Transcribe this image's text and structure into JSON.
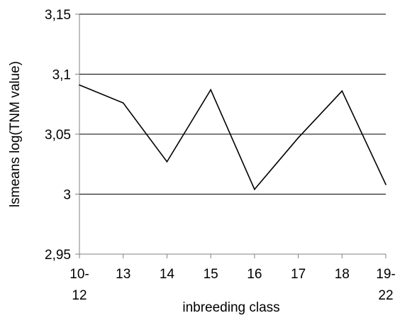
{
  "chart_data": {
    "type": "line",
    "title": "",
    "xlabel": "inbreeding class",
    "ylabel": "lsmeans log(TNM value)",
    "categories": [
      [
        "10-",
        "12"
      ],
      [
        "13"
      ],
      [
        "14"
      ],
      [
        "15"
      ],
      [
        "16"
      ],
      [
        "17"
      ],
      [
        "18"
      ],
      [
        "19-",
        "22"
      ]
    ],
    "series": [
      {
        "values": [
          3.091,
          3.076,
          3.027,
          3.087,
          3.004,
          3.047,
          3.086,
          3.008
        ]
      }
    ],
    "ylim": [
      2.95,
      3.15
    ],
    "yticks": [
      2.95,
      3,
      3.05,
      3.1,
      3.15
    ],
    "ytick_labels": [
      "2,95",
      "3",
      "3,05",
      "3,1",
      "3,15"
    ],
    "grid": "horizontal",
    "legend": "none",
    "colors": {
      "line": "#000000",
      "grid": "#000000",
      "axis": "#808080"
    }
  }
}
